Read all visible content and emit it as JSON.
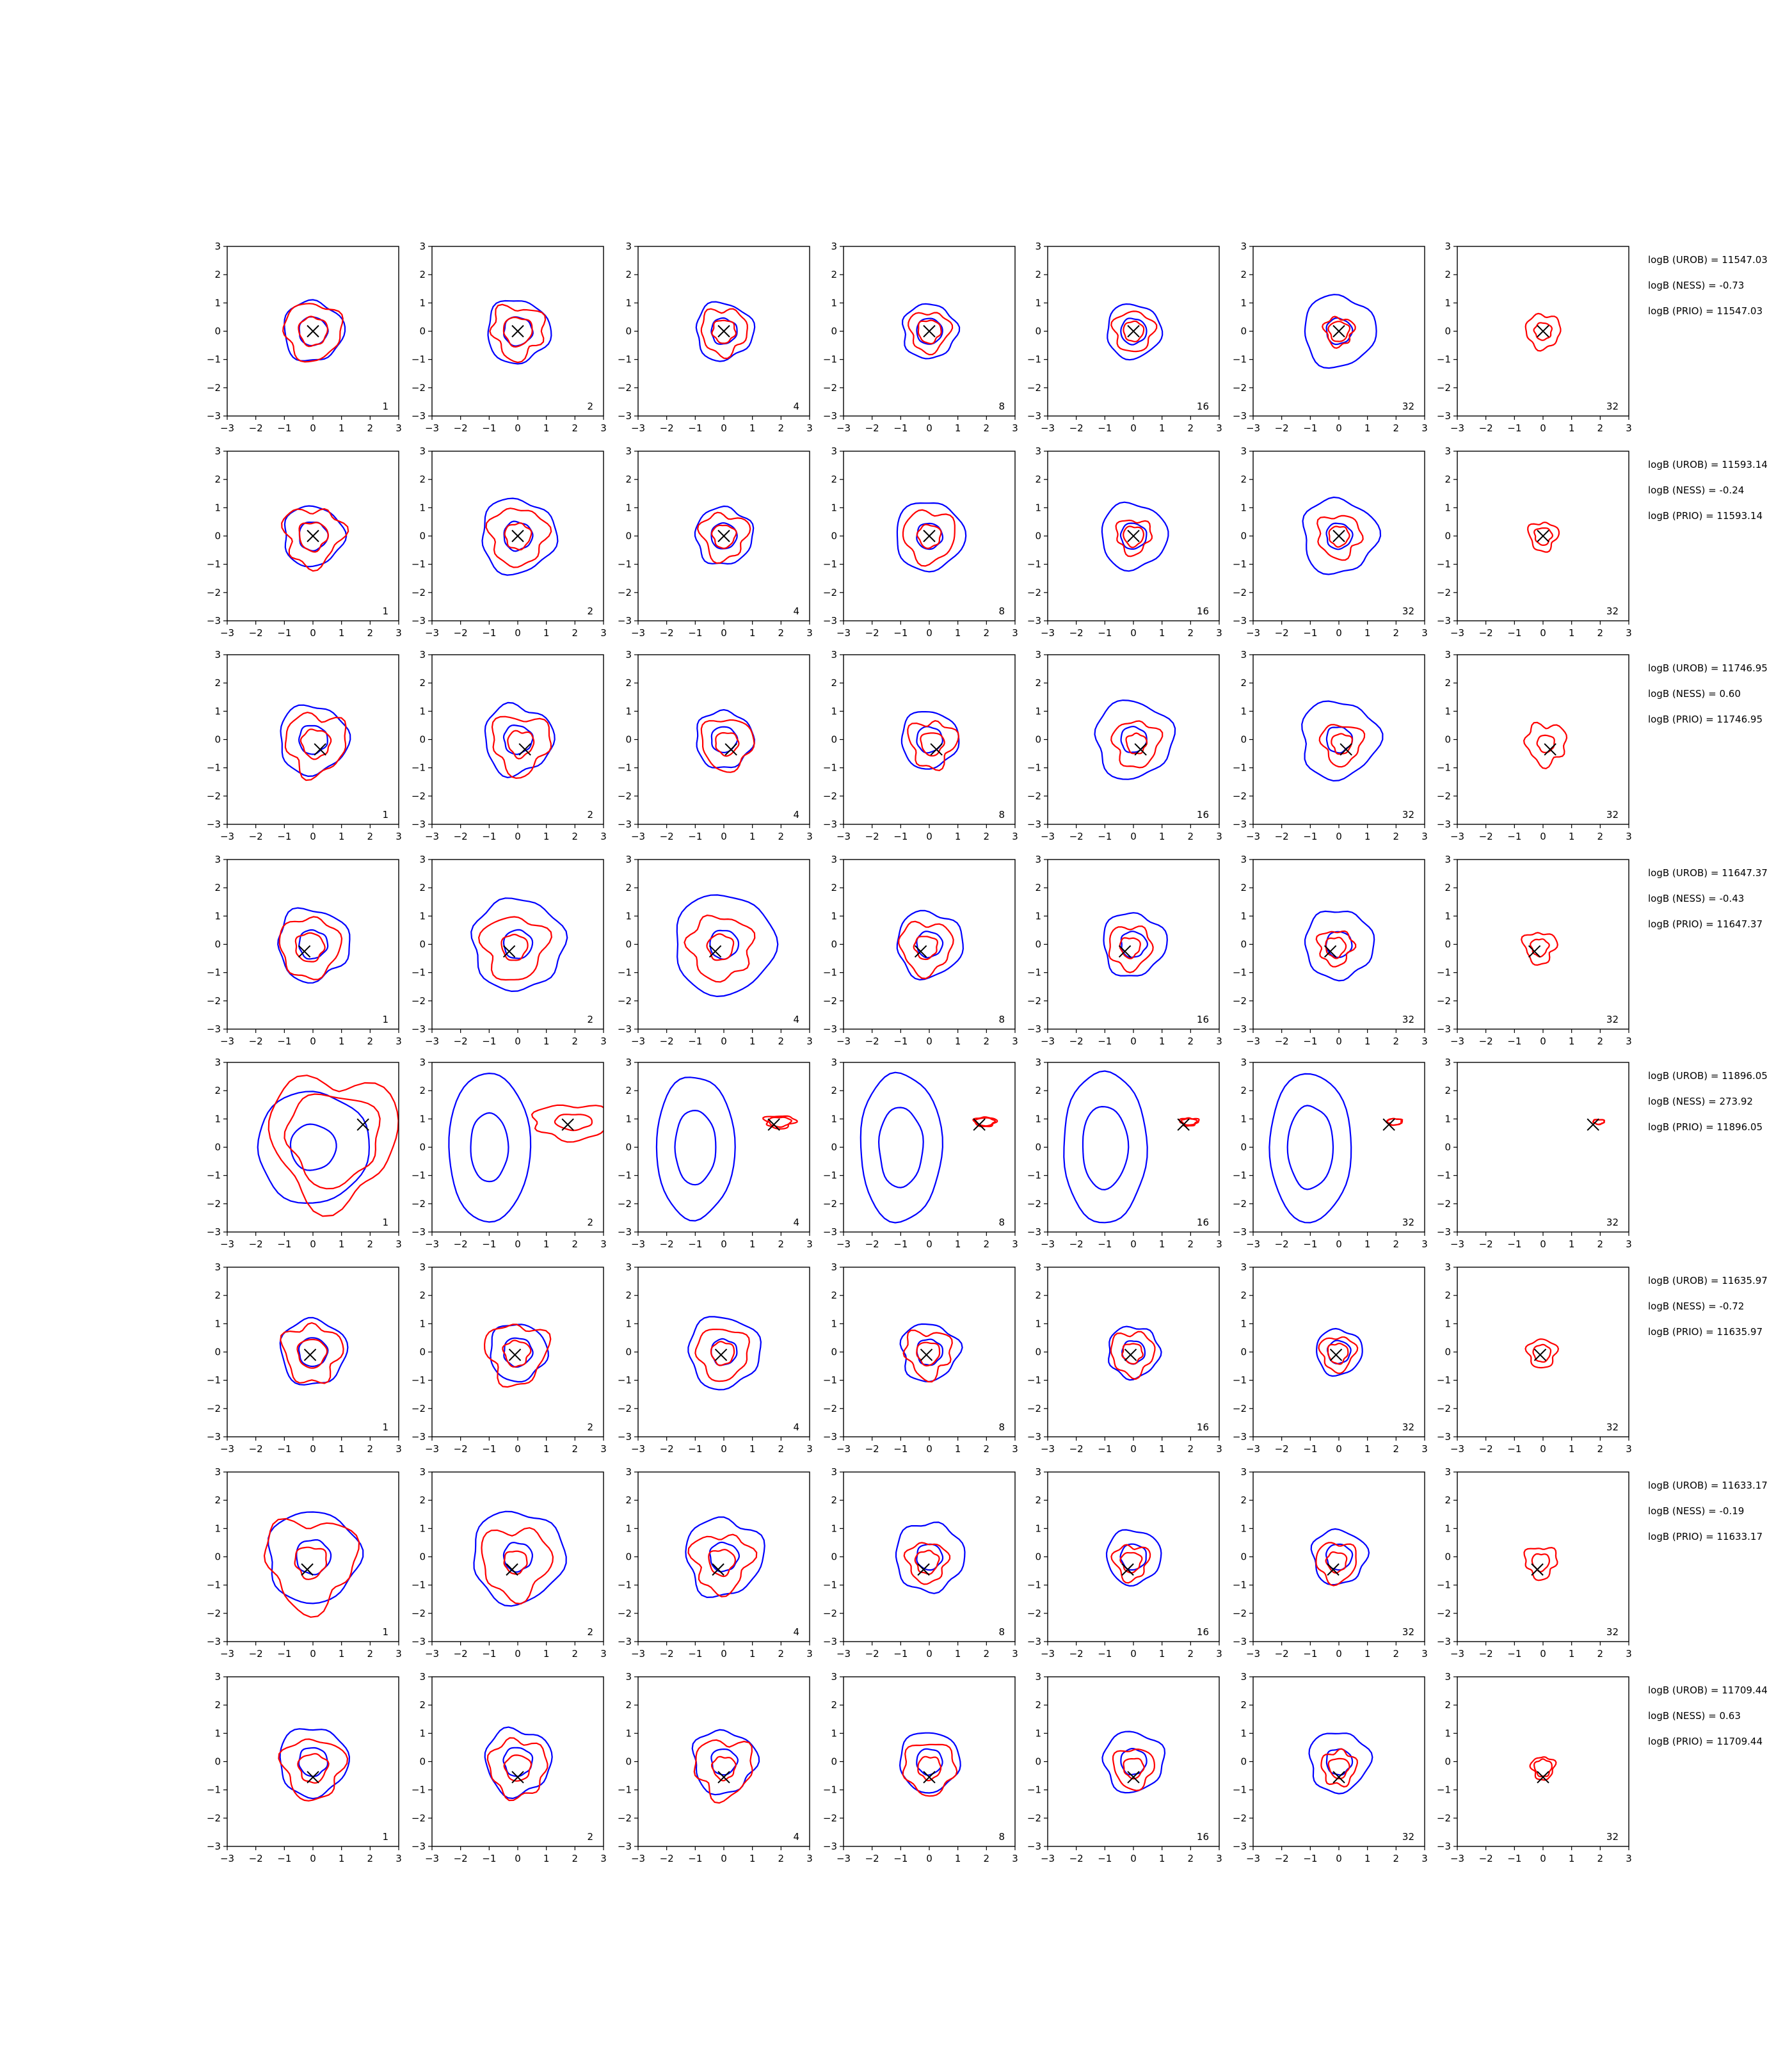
{
  "chart_data": {
    "type": "line",
    "description_kind": "grid of 2D contour panels (8 rows x 7 columns)",
    "xlim": [
      -3,
      3
    ],
    "ylim": [
      -3,
      3
    ],
    "xticks": [
      "−3",
      "−2",
      "−1",
      "0",
      "1",
      "2",
      "3"
    ],
    "yticks": [
      "3",
      "2",
      "1",
      "0",
      "−1",
      "−2",
      "−3"
    ],
    "panel_labels": [
      "1",
      "2",
      "4",
      "8",
      "16",
      "32",
      "32"
    ],
    "colors": {
      "blue": "#0000ff",
      "red": "#ff0000",
      "marker": "#000000"
    },
    "rows": [
      {
        "marker": [
          0,
          0
        ],
        "annotations": [
          "logB (UROB) = 11547.03",
          "logB (NESS) = -0.73",
          "logB (PRIO) = 11547.03"
        ],
        "blue": [
          [
            0.5,
            1.05
          ],
          [
            0.5,
            1.1
          ],
          [
            0.45,
            1.0
          ],
          [
            0.45,
            0.95
          ],
          [
            0.45,
            0.95
          ],
          [
            0.45,
            1.25
          ],
          [
            null,
            null
          ]
        ],
        "red": [
          [
            0.5,
            1.0
          ],
          [
            0.5,
            0.9
          ],
          [
            0.4,
            0.8
          ],
          [
            0.4,
            0.7
          ],
          [
            0.35,
            0.7
          ],
          [
            0.35,
            0.5
          ],
          [
            0.3,
            0.6
          ]
        ]
      },
      {
        "marker": [
          0,
          0
        ],
        "annotations": [
          "logB (UROB) = 11593.14",
          "logB (NESS) = -0.24",
          "logB (PRIO) = 11593.14"
        ],
        "blue": [
          [
            0.5,
            1.05
          ],
          [
            0.5,
            1.3
          ],
          [
            0.45,
            1.0
          ],
          [
            0.45,
            1.2
          ],
          [
            0.45,
            1.15
          ],
          [
            0.45,
            1.3
          ],
          [
            null,
            null
          ]
        ],
        "red": [
          [
            0.5,
            1.0
          ],
          [
            0.45,
            1.0
          ],
          [
            0.4,
            0.8
          ],
          [
            0.4,
            0.9
          ],
          [
            0.35,
            0.6
          ],
          [
            0.35,
            0.75
          ],
          [
            0.3,
            0.5
          ]
        ]
      },
      {
        "marker": [
          0.25,
          -0.35
        ],
        "annotations": [
          "logB (UROB) = 11746.95",
          "logB (NESS) = 0.60",
          "logB (PRIO) = 11746.95"
        ],
        "blue": [
          [
            0.5,
            1.2
          ],
          [
            0.5,
            1.2
          ],
          [
            0.45,
            1.0
          ],
          [
            0.45,
            1.0
          ],
          [
            0.45,
            1.35
          ],
          [
            0.45,
            1.35
          ],
          [
            null,
            null
          ]
        ],
        "red": [
          [
            0.5,
            1.05
          ],
          [
            0.45,
            1.0
          ],
          [
            0.4,
            0.9
          ],
          [
            0.4,
            0.8
          ],
          [
            0.35,
            0.8
          ],
          [
            0.35,
            0.7
          ],
          [
            0.3,
            0.7
          ]
        ]
      },
      {
        "marker": [
          -0.3,
          -0.25
        ],
        "annotations": [
          "logB (UROB) = 11647.37",
          "logB (NESS) = -0.43",
          "logB (PRIO) = 11647.37"
        ],
        "blue": [
          [
            0.5,
            1.25
          ],
          [
            0.5,
            1.6
          ],
          [
            0.5,
            1.75
          ],
          [
            0.45,
            1.15
          ],
          [
            0.45,
            1.1
          ],
          [
            0.45,
            1.2
          ],
          [
            null,
            null
          ]
        ],
        "red": [
          [
            0.5,
            1.05
          ],
          [
            0.45,
            1.1
          ],
          [
            0.45,
            1.1
          ],
          [
            0.4,
            0.9
          ],
          [
            0.35,
            0.75
          ],
          [
            0.35,
            0.6
          ],
          [
            0.3,
            0.55
          ]
        ]
      },
      {
        "marker": [
          1.75,
          0.8
        ],
        "annotations": [
          "logB (UROB) = 11896.05",
          "logB (NESS) = 273.92",
          "logB (PRIO) = 11896.05"
        ],
        "blue_kind": "ellipses",
        "blue": [
          [
            0.8,
            1.95
          ],
          [
            1.2,
            2.6
          ],
          [
            1.3,
            2.5
          ],
          [
            1.4,
            2.6
          ],
          [
            1.45,
            2.65
          ],
          [
            1.45,
            2.6
          ],
          [
            null,
            null
          ]
        ],
        "red": [
          [
            1.6,
            2.2
          ],
          [
            0.5,
            1.1
          ],
          [
            0.3,
            0.4
          ],
          [
            0.25,
            0.3
          ],
          [
            0.2,
            0.25
          ],
          [
            0.2,
            0.2
          ],
          [
            0.15,
            0.15
          ]
        ]
      },
      {
        "marker": [
          -0.1,
          -0.1
        ],
        "annotations": [
          "logB (UROB) = 11635.97",
          "logB (NESS) = -0.72",
          "logB (PRIO) = 11635.97"
        ],
        "blue": [
          [
            0.5,
            1.15
          ],
          [
            0.5,
            1.0
          ],
          [
            0.45,
            1.25
          ],
          [
            0.45,
            1.0
          ],
          [
            0.4,
            0.9
          ],
          [
            0.4,
            0.8
          ],
          [
            null,
            null
          ]
        ],
        "red": [
          [
            0.5,
            1.0
          ],
          [
            0.45,
            1.05
          ],
          [
            0.4,
            0.9
          ],
          [
            0.4,
            0.8
          ],
          [
            0.35,
            0.75
          ],
          [
            0.35,
            0.6
          ],
          [
            0.3,
            0.5
          ]
        ]
      },
      {
        "marker": [
          -0.2,
          -0.45
        ],
        "annotations": [
          "logB (UROB) = 11633.17",
          "logB (NESS) = -0.19",
          "logB (PRIO) = 11633.17"
        ],
        "blue": [
          [
            0.6,
            1.6
          ],
          [
            0.5,
            1.6
          ],
          [
            0.5,
            1.35
          ],
          [
            0.45,
            1.2
          ],
          [
            0.45,
            0.95
          ],
          [
            0.45,
            0.95
          ],
          [
            null,
            null
          ]
        ],
        "red": [
          [
            0.55,
            1.55
          ],
          [
            0.4,
            1.2
          ],
          [
            0.45,
            1.0
          ],
          [
            0.4,
            0.7
          ],
          [
            0.35,
            0.6
          ],
          [
            0.35,
            0.7
          ],
          [
            0.3,
            0.55
          ]
        ]
      },
      {
        "marker": [
          0,
          -0.55
        ],
        "annotations": [
          "logB (UROB) = 11709.44",
          "logB (NESS) = 0.63",
          "logB (PRIO) = 11709.44"
        ],
        "blue": [
          [
            0.5,
            1.2
          ],
          [
            0.5,
            1.15
          ],
          [
            0.45,
            1.1
          ],
          [
            0.45,
            1.05
          ],
          [
            0.45,
            1.05
          ],
          [
            0.45,
            1.05
          ],
          [
            null,
            null
          ]
        ],
        "red": [
          [
            0.5,
            1.05
          ],
          [
            0.45,
            1.0
          ],
          [
            0.4,
            1.0
          ],
          [
            0.4,
            0.9
          ],
          [
            0.35,
            0.7
          ],
          [
            0.35,
            0.6
          ],
          [
            0.3,
            0.4
          ]
        ]
      }
    ]
  }
}
